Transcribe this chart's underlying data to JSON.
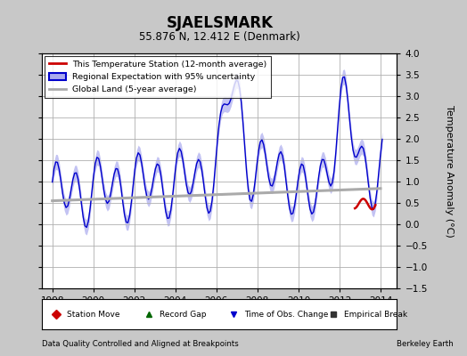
{
  "title": "SJAELSMARK",
  "subtitle": "55.876 N, 12.412 E (Denmark)",
  "ylabel": "Temperature Anomaly (°C)",
  "xlabel_bottom_left": "Data Quality Controlled and Aligned at Breakpoints",
  "xlabel_bottom_right": "Berkeley Earth",
  "xlim": [
    1997.5,
    2014.8
  ],
  "ylim": [
    -1.5,
    4.0
  ],
  "yticks": [
    -1.5,
    -1.0,
    -0.5,
    0.0,
    0.5,
    1.0,
    1.5,
    2.0,
    2.5,
    3.0,
    3.5,
    4.0
  ],
  "xticks": [
    1998,
    2000,
    2002,
    2004,
    2006,
    2008,
    2010,
    2012,
    2014
  ],
  "background_color": "#c8c8c8",
  "plot_bg_color": "#ffffff",
  "grid_color": "#b0b0b0",
  "regional_color": "#0000cc",
  "regional_fill_color": "#aaaaee",
  "station_color": "#cc0000",
  "global_color": "#aaaaaa",
  "legend_items": [
    {
      "label": "This Temperature Station (12-month average)",
      "color": "#cc0000"
    },
    {
      "label": "Regional Expectation with 95% uncertainty",
      "color": "#0000cc",
      "fill": "#aaaaee"
    },
    {
      "label": "Global Land (5-year average)",
      "color": "#aaaaaa"
    }
  ],
  "bottom_legend": [
    {
      "label": "Station Move",
      "color": "#cc0000"
    },
    {
      "label": "Record Gap",
      "color": "#006600"
    },
    {
      "label": "Time of Obs. Change",
      "color": "#0000cc"
    },
    {
      "label": "Empirical Break",
      "color": "#333333"
    }
  ]
}
